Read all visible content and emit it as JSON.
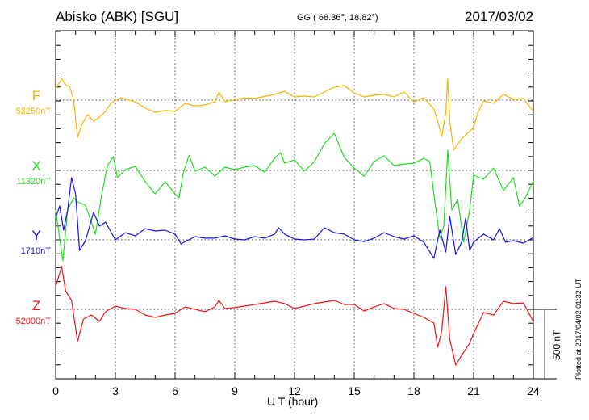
{
  "header": {
    "title": "Abisko (ABK)  [SGU]",
    "coords": "GG ( 68.36°,  18.82°)",
    "date": "2017/03/02"
  },
  "footer": {
    "plotted": "Plotted at 2017/04/02 01:32 UT",
    "scale_label": "500 nT"
  },
  "chart_data": {
    "type": "line",
    "title": "Abisko (ABK)  [SGU]",
    "xlabel": "U T (hour)",
    "xlim": [
      0,
      24
    ],
    "xticks": [
      "0",
      "3",
      "6",
      "9",
      "12",
      "15",
      "18",
      "21",
      "24"
    ],
    "scale_bar_nT": 500,
    "grid": true,
    "series": [
      {
        "name": "F",
        "baseline_label": "53250nT",
        "color": "#f5b400",
        "t": [
          0,
          0.3,
          0.5,
          0.7,
          0.9,
          1.1,
          1.3,
          1.6,
          1.9,
          2.2,
          2.5,
          2.8,
          3,
          3.3,
          4,
          4.5,
          5,
          5.5,
          6,
          6.2,
          6.5,
          7,
          7.5,
          8,
          8.2,
          8.5,
          9,
          9.5,
          10,
          11,
          11.5,
          12,
          12.5,
          13,
          14,
          14.5,
          15,
          15.5,
          16,
          16.5,
          17,
          17.5,
          18,
          18.5,
          19,
          19.2,
          19.4,
          19.6,
          19.7,
          19.8,
          20,
          20.3,
          20.6,
          21,
          21.2,
          21.5,
          22,
          22.5,
          23,
          23.5,
          24
        ],
        "v": [
          81,
          157,
          110,
          99,
          6,
          -267,
          -180,
          -104,
          -151,
          -122,
          -81,
          -17,
          0,
          17,
          -12,
          -58,
          -87,
          -75,
          -81,
          -58,
          -23,
          -41,
          -35,
          -12,
          58,
          -12,
          6,
          17,
          12,
          41,
          64,
          23,
          29,
          23,
          93,
          105,
          52,
          23,
          35,
          41,
          23,
          58,
          -12,
          17,
          -64,
          -151,
          -261,
          -93,
          157,
          -151,
          -360,
          -296,
          -250,
          -198,
          -93,
          -6,
          -23,
          41,
          6,
          12,
          -81
        ]
      },
      {
        "name": "X",
        "baseline_label": "11320nT",
        "color": "#22dd22",
        "t": [
          0,
          0.36,
          0.6,
          0.9,
          1.1,
          1.5,
          2,
          2.3,
          2.6,
          2.9,
          3.1,
          3.5,
          4,
          4.5,
          5,
          5.5,
          6,
          6.2,
          6.4,
          6.7,
          7,
          7.5,
          8,
          8.5,
          9,
          9.5,
          10,
          10.5,
          11,
          11.3,
          11.5,
          12,
          12.5,
          13,
          13.5,
          14,
          14.5,
          15,
          15.5,
          16,
          16.5,
          17,
          17.5,
          18,
          18.5,
          18.8,
          19,
          19.3,
          19.5,
          19.7,
          19.9,
          20.2,
          20.5,
          20.8,
          21,
          21.5,
          22,
          22.5,
          23,
          23.3,
          23.6,
          24
        ],
        "v": [
          -285,
          -651,
          -285,
          -198,
          -227,
          -250,
          -459,
          -186,
          35,
          99,
          -52,
          6,
          29,
          -81,
          -169,
          -81,
          -169,
          -198,
          -23,
          110,
          -6,
          23,
          -41,
          23,
          6,
          23,
          35,
          -12,
          87,
          128,
          52,
          76,
          -6,
          64,
          192,
          267,
          93,
          17,
          -41,
          64,
          105,
          35,
          46,
          52,
          87,
          64,
          -169,
          -488,
          -401,
          145,
          -285,
          -209,
          -517,
          -285,
          -35,
          -64,
          17,
          -145,
          -52,
          -256,
          -198,
          -76
        ]
      },
      {
        "name": "Y",
        "baseline_label": "1710nT",
        "color": "#1414e6",
        "t": [
          0,
          0.2,
          0.4,
          0.6,
          0.8,
          1,
          1.2,
          1.5,
          1.9,
          2.2,
          2.5,
          3,
          3.5,
          4,
          4.5,
          5,
          5.5,
          6,
          6.3,
          7,
          7.5,
          8,
          8.5,
          9,
          9.5,
          10,
          10.5,
          11,
          11.2,
          11.5,
          12,
          12.5,
          13,
          13.5,
          14,
          14.5,
          15,
          15.5,
          16,
          16.5,
          17,
          17.5,
          18,
          18.5,
          19,
          19.3,
          19.6,
          19.8,
          20.1,
          20.4,
          20.6,
          20.8,
          21,
          21.5,
          22,
          22.3,
          22.6,
          23,
          23.5,
          24
        ],
        "v": [
          157,
          244,
          70,
          215,
          447,
          331,
          -76,
          -6,
          198,
          99,
          128,
          0,
          52,
          29,
          81,
          64,
          70,
          41,
          -29,
          23,
          12,
          12,
          29,
          6,
          0,
          23,
          12,
          41,
          87,
          41,
          6,
          0,
          6,
          87,
          52,
          41,
          0,
          -12,
          12,
          52,
          23,
          6,
          29,
          -17,
          -134,
          70,
          -87,
          168,
          -105,
          -17,
          157,
          -76,
          -17,
          41,
          0,
          81,
          -17,
          -6,
          -23,
          17
        ]
      },
      {
        "name": "Z",
        "baseline_label": "52000nT",
        "color": "#f01414",
        "t": [
          0,
          0.3,
          0.5,
          0.8,
          1.1,
          1.4,
          1.8,
          2.2,
          2.5,
          3,
          3.5,
          4,
          4.5,
          5,
          5.5,
          6,
          6.5,
          7,
          7.5,
          8,
          8.2,
          8.5,
          9,
          10,
          11,
          11.5,
          12,
          12.5,
          13,
          14,
          14.5,
          15,
          15.5,
          16,
          16.5,
          17,
          17.5,
          18,
          18.5,
          19,
          19.2,
          19.4,
          19.6,
          19.8,
          20.1,
          20.4,
          20.8,
          21,
          21.5,
          22,
          22.5,
          23,
          23.5,
          24
        ],
        "v": [
          163,
          308,
          134,
          64,
          -232,
          -70,
          -41,
          -87,
          -17,
          23,
          6,
          0,
          -41,
          -58,
          -41,
          -29,
          17,
          0,
          -17,
          17,
          64,
          6,
          12,
          35,
          58,
          41,
          6,
          23,
          41,
          64,
          35,
          35,
          -12,
          17,
          41,
          6,
          0,
          -29,
          -58,
          -99,
          -273,
          -157,
          163,
          -215,
          -401,
          -331,
          -244,
          -174,
          -23,
          -41,
          58,
          41,
          46,
          -87
        ]
      }
    ]
  }
}
